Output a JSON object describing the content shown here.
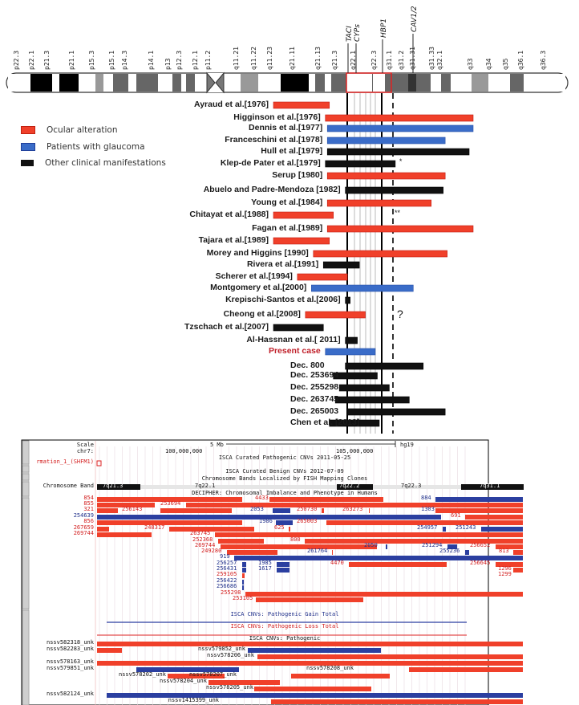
{
  "ideogram": {
    "chromosome": "7",
    "p_bands": [
      "p22.3",
      "p22.1",
      "p21.3",
      "p21.1",
      "p15.3",
      "p15.1",
      "p14.3",
      "p14.1",
      "p13",
      "p12.3",
      "p12.1",
      "p11.2"
    ],
    "q_bands": [
      "q11.21",
      "q11.22",
      "q11.23",
      "q21.11",
      "q21.13",
      "q21.3",
      "q22.1",
      "q22.3",
      "q31.1",
      "q31.2",
      "q31.31",
      "q31.33",
      "q32.1",
      "q33",
      "q34",
      "q35",
      "q36.1",
      "q36.3"
    ],
    "genes": [
      "TACI",
      "CYPs",
      "HBP1",
      "CAV1/2"
    ]
  },
  "legend": [
    {
      "label": "Ocular alteration",
      "color": "#f0402a"
    },
    {
      "label": "Patients with glaucoma",
      "color": "#3a6cc8"
    },
    {
      "label": "Other clinical manifestations",
      "color": "#111111"
    }
  ],
  "colors": {
    "ocular": "#f0402a",
    "glaucoma": "#3a6cc8",
    "other": "#111111",
    "present_case_label": "#c0202a"
  },
  "cases": [
    {
      "label": "Ayraud et al.[1976]",
      "type": "ocular",
      "start": 0,
      "end": 28
    },
    {
      "label": "Higginson et al.[1976]",
      "type": "ocular",
      "start": 26,
      "end": 100
    },
    {
      "label": "Dennis et al.[1977]",
      "type": "glaucoma",
      "start": 27,
      "end": 100
    },
    {
      "label": "Franceschini et al.[1978]",
      "type": "glaucoma",
      "start": 27,
      "end": 86
    },
    {
      "label": "Hull et al.[1979]",
      "type": "other",
      "start": 27,
      "end": 98
    },
    {
      "label": "Klep-de Pater et al.[1979]",
      "type": "other",
      "start": 26,
      "end": 61,
      "note": "*"
    },
    {
      "label": "Serup [1980]",
      "type": "ocular",
      "start": 27,
      "end": 86
    },
    {
      "label": "Abuelo and Padre-Mendoza [1982]",
      "type": "other",
      "start": 36,
      "end": 85
    },
    {
      "label": "Young et al.[1984]",
      "type": "ocular",
      "start": 27,
      "end": 79
    },
    {
      "label": "Chitayat et al.[1988]",
      "type": "ocular",
      "start": 0,
      "end": 30,
      "note": "**"
    },
    {
      "label": "Fagan et al.[1989]",
      "type": "ocular",
      "start": 27,
      "end": 100
    },
    {
      "label": "Tajara et al.[1989]",
      "type": "ocular",
      "start": 0,
      "end": 28
    },
    {
      "label": "Morey and Higgins [1990]",
      "type": "ocular",
      "start": 20,
      "end": 87
    },
    {
      "label": "Rivera et al.[1991]",
      "type": "other",
      "start": 25,
      "end": 43
    },
    {
      "label": "Scherer et al.[1994]",
      "type": "ocular",
      "start": 12,
      "end": 37
    },
    {
      "label": "Montgomery et al.[2000]",
      "type": "glaucoma",
      "start": 19,
      "end": 70
    },
    {
      "label": "Krepischi-Santos et al.[2006]",
      "type": "other",
      "start": 36,
      "end": 38
    },
    {
      "label": "Cheong et al.[2008]",
      "type": "ocular",
      "start": 16,
      "end": 46,
      "note": "?"
    },
    {
      "label": "Tzschach et al.[2007]",
      "type": "other",
      "start": 0,
      "end": 25
    },
    {
      "label": "Al-Hassnan et al.[ 2011]",
      "type": "other",
      "start": 36,
      "end": 42
    },
    {
      "label": "Present case",
      "type": "glaucoma",
      "start": 26,
      "end": 51
    },
    {
      "label": "Dec. 800",
      "type": "other",
      "start": 36,
      "end": 75
    },
    {
      "label": "Dec. 253694",
      "type": "other",
      "start": 30,
      "end": 52
    },
    {
      "label": "Dec. 255298",
      "type": "other",
      "start": 33,
      "end": 58
    },
    {
      "label": "Dec. 263745",
      "type": "other",
      "start": 31,
      "end": 68
    },
    {
      "label": "Dec. 265003",
      "type": "other",
      "start": 37,
      "end": 86
    },
    {
      "label": "Chen et al. [2013]",
      "type": "other",
      "start": 28,
      "end": 53
    }
  ],
  "ucsc": {
    "scale_label": "Scale",
    "scale_value": "5 Mb",
    "assembly": "hg19",
    "chr_label": "chr7:",
    "pos1": "100,000,000",
    "pos2": "105,000,000",
    "track_custom": "rmation_1_(SHFM1)",
    "isca_curated_path": "ISCA Curated Pathogenic CNVs 2011-05-25",
    "isca_curated_benign": "ISCA Curated Benign CNVs 2012-07-09",
    "fish_title": "Chromosome Bands Localized by FISH Mapping Clones",
    "chrom_band_label": "Chromosome Band",
    "bands": [
      "7q21.3",
      "7q22.1",
      "7q22.2",
      "7q22.3",
      "7q31.1"
    ],
    "decipher_title": "DECIPHER: Chromosomal Imbalance and Phenotype in Humans",
    "decipher_left_labels": [
      {
        "text": "854",
        "color": "red"
      },
      {
        "text": "855",
        "color": "red"
      },
      {
        "text": "321",
        "color": "red"
      },
      {
        "text": "254639",
        "color": "blue"
      },
      {
        "text": "856",
        "color": "red"
      },
      {
        "text": "267659",
        "color": "red"
      },
      {
        "text": "269744",
        "color": "red"
      }
    ],
    "decipher_inline_labels": [
      "4433",
      "253694",
      "256143",
      "2053",
      "250730",
      "263273",
      "1303",
      "884",
      "691",
      "1986",
      "265003",
      "248317",
      "625",
      "254957",
      "251243",
      "263745",
      "252368",
      "800",
      "269744",
      "2050",
      "251294",
      "256652",
      "249280",
      "261764",
      "255236",
      "813",
      "919",
      "256257",
      "1985",
      "4470",
      "256645",
      "256431",
      "1617",
      "1296",
      "1299",
      "259105",
      "256422",
      "256686",
      "255298",
      "253105"
    ],
    "gain_total": "ISCA CNVs: Pathogenic Gain Total",
    "loss_total": "ISCA CNVs: Pathogenic Loss Total",
    "pathogenic_title": "ISCA CNVs: Pathogenic",
    "nssv_left_labels": [
      "nssv582318_unk",
      "nssv582283_unk",
      "nssv578163_unk",
      "nssv579851_unk",
      "nssv582124_unk"
    ],
    "nssv_inline_labels": [
      "nssv579852_unk",
      "nssv578206_unk",
      "nssv578202_unk",
      "nssv578207_unk",
      "nssv578208_unk",
      "nssv578204_unk",
      "nssv578205_unk",
      "nssv1415399_unk"
    ]
  }
}
